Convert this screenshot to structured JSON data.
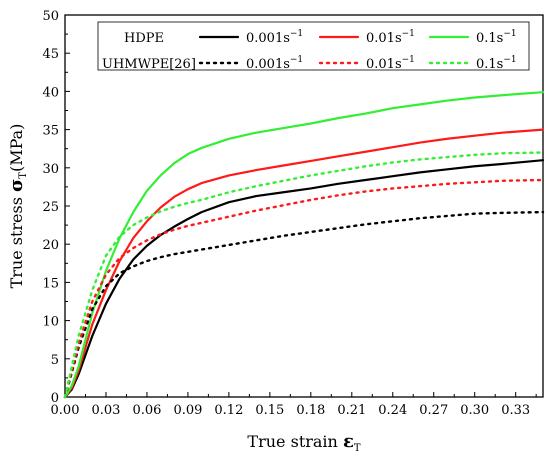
{
  "chart_data": {
    "type": "line",
    "xlabel": {
      "main": "True strain ",
      "symbol": "ε",
      "sub": "T"
    },
    "ylabel": {
      "main": "True stress ",
      "symbol": "σ",
      "sub": "T",
      "unit": "(MPa)"
    },
    "xlim": [
      0,
      0.35
    ],
    "ylim": [
      0,
      50
    ],
    "x_ticks": [
      "0.00",
      "0.03",
      "0.06",
      "0.09",
      "0.12",
      "0.15",
      "0.18",
      "0.21",
      "0.24",
      "0.27",
      "0.30",
      "0.33"
    ],
    "x_tick_values": [
      0,
      0.03,
      0.06,
      0.09,
      0.12,
      0.15,
      0.18,
      0.21,
      0.24,
      0.27,
      0.3,
      0.33
    ],
    "y_ticks": [
      "0",
      "5",
      "10",
      "15",
      "20",
      "25",
      "30",
      "35",
      "40",
      "45",
      "50"
    ],
    "y_tick_values": [
      0,
      5,
      10,
      15,
      20,
      25,
      30,
      35,
      40,
      45,
      50
    ],
    "legend": {
      "placement": "top-right",
      "rows": [
        {
          "label": "HDPE",
          "entries": [
            {
              "text": "0.001s",
              "sup": "−1",
              "color": "#000000",
              "style": "solid"
            },
            {
              "text": "0.01s",
              "sup": "−1",
              "color": "#ff1a1a",
              "style": "solid"
            },
            {
              "text": "0.1s",
              "sup": "−1",
              "color": "#33ee33",
              "style": "solid"
            }
          ]
        },
        {
          "label": "UHMWPE[26]",
          "entries": [
            {
              "text": "0.001s",
              "sup": "−1",
              "color": "#000000",
              "style": "dotted"
            },
            {
              "text": "0.01s",
              "sup": "−1",
              "color": "#ff1a1a",
              "style": "dotted"
            },
            {
              "text": "0.1s",
              "sup": "−1",
              "color": "#33ee33",
              "style": "dotted"
            }
          ]
        }
      ]
    },
    "series": [
      {
        "group": "HDPE",
        "rate": "0.001s-1",
        "color": "#000000",
        "style": "solid",
        "x": [
          0,
          0.005,
          0.01,
          0.015,
          0.02,
          0.03,
          0.04,
          0.05,
          0.06,
          0.07,
          0.08,
          0.09,
          0.1,
          0.12,
          0.14,
          0.16,
          0.18,
          0.2,
          0.22,
          0.24,
          0.26,
          0.28,
          0.3,
          0.32,
          0.35
        ],
        "y": [
          0,
          1.0,
          3.0,
          5.5,
          8.0,
          12.2,
          15.5,
          18.0,
          19.8,
          21.2,
          22.3,
          23.3,
          24.2,
          25.5,
          26.3,
          26.8,
          27.3,
          27.9,
          28.4,
          28.9,
          29.4,
          29.8,
          30.2,
          30.5,
          31.0
        ]
      },
      {
        "group": "HDPE",
        "rate": "0.01s-1",
        "color": "#ff1a1a",
        "style": "solid",
        "x": [
          0,
          0.005,
          0.01,
          0.015,
          0.02,
          0.03,
          0.04,
          0.05,
          0.06,
          0.07,
          0.08,
          0.09,
          0.1,
          0.12,
          0.14,
          0.16,
          0.18,
          0.2,
          0.22,
          0.24,
          0.26,
          0.28,
          0.3,
          0.32,
          0.35
        ],
        "y": [
          0,
          1.2,
          3.5,
          6.5,
          9.5,
          14.0,
          17.8,
          20.8,
          23.0,
          24.8,
          26.2,
          27.2,
          28.0,
          29.0,
          29.7,
          30.3,
          30.9,
          31.5,
          32.1,
          32.7,
          33.3,
          33.8,
          34.2,
          34.6,
          35.0
        ]
      },
      {
        "group": "HDPE",
        "rate": "0.1s-1",
        "color": "#33ee33",
        "style": "solid",
        "x": [
          0,
          0.005,
          0.01,
          0.015,
          0.02,
          0.03,
          0.04,
          0.05,
          0.06,
          0.07,
          0.08,
          0.09,
          0.1,
          0.12,
          0.14,
          0.16,
          0.18,
          0.2,
          0.22,
          0.24,
          0.26,
          0.28,
          0.3,
          0.32,
          0.35
        ],
        "y": [
          0,
          1.5,
          4.0,
          7.5,
          11.0,
          16.5,
          20.8,
          24.2,
          27.0,
          29.0,
          30.6,
          31.8,
          32.6,
          33.8,
          34.6,
          35.2,
          35.8,
          36.5,
          37.1,
          37.8,
          38.3,
          38.8,
          39.2,
          39.5,
          39.9
        ]
      },
      {
        "group": "UHMWPE[26]",
        "rate": "0.001s-1",
        "color": "#000000",
        "style": "dotted",
        "x": [
          0,
          0.005,
          0.01,
          0.02,
          0.03,
          0.04,
          0.05,
          0.06,
          0.07,
          0.08,
          0.09,
          0.1,
          0.12,
          0.14,
          0.16,
          0.18,
          0.2,
          0.22,
          0.24,
          0.26,
          0.28,
          0.3,
          0.32,
          0.35
        ],
        "y": [
          0,
          3.2,
          6.5,
          11.5,
          14.5,
          16.2,
          17.1,
          17.8,
          18.3,
          18.7,
          19.0,
          19.3,
          19.9,
          20.5,
          21.1,
          21.6,
          22.1,
          22.6,
          23.0,
          23.4,
          23.7,
          24.0,
          24.1,
          24.2
        ]
      },
      {
        "group": "UHMWPE[26]",
        "rate": "0.01s-1",
        "color": "#ff1a1a",
        "style": "dotted",
        "x": [
          0,
          0.005,
          0.01,
          0.02,
          0.03,
          0.04,
          0.05,
          0.06,
          0.07,
          0.08,
          0.09,
          0.1,
          0.12,
          0.14,
          0.16,
          0.18,
          0.2,
          0.22,
          0.24,
          0.26,
          0.28,
          0.3,
          0.32,
          0.35
        ],
        "y": [
          0,
          3.5,
          7.0,
          12.5,
          16.0,
          18.2,
          19.5,
          20.5,
          21.3,
          21.9,
          22.4,
          22.8,
          23.6,
          24.4,
          25.1,
          25.8,
          26.4,
          26.9,
          27.3,
          27.6,
          27.9,
          28.1,
          28.3,
          28.4
        ]
      },
      {
        "group": "UHMWPE[26]",
        "rate": "0.1s-1",
        "color": "#33ee33",
        "style": "dotted",
        "x": [
          0,
          0.005,
          0.01,
          0.02,
          0.03,
          0.04,
          0.05,
          0.06,
          0.07,
          0.08,
          0.09,
          0.1,
          0.12,
          0.14,
          0.16,
          0.18,
          0.2,
          0.22,
          0.24,
          0.26,
          0.28,
          0.3,
          0.32,
          0.35
        ],
        "y": [
          0,
          4.0,
          8.0,
          14.0,
          18.5,
          21.0,
          22.5,
          23.5,
          24.3,
          24.9,
          25.4,
          25.8,
          26.8,
          27.6,
          28.3,
          29.0,
          29.6,
          30.2,
          30.7,
          31.1,
          31.4,
          31.7,
          31.9,
          32.0
        ]
      }
    ]
  }
}
